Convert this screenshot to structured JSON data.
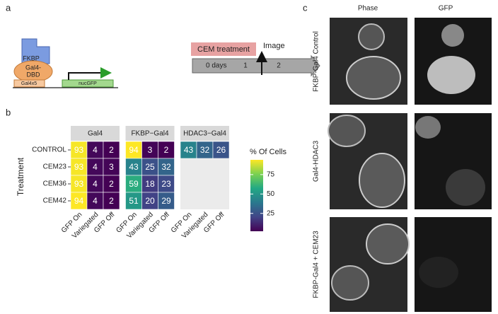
{
  "panel_labels": [
    "a",
    "b",
    "c"
  ],
  "panel_a": {
    "fkbp": "FKBP",
    "dbd": [
      "Gal4-",
      "DBD"
    ],
    "uas": "Gal4x5",
    "reporter": "nucGFP",
    "image": "Image",
    "treatment": "CEM treatment",
    "timeline": [
      "0 days",
      "1",
      "2"
    ]
  },
  "chart_data": {
    "type": "heatmap",
    "y_label": "Treatment",
    "legend_title": "% Of Cells",
    "rows": [
      "CONTROL",
      "CEM23",
      "CEM36",
      "CEM42"
    ],
    "columns": [
      "GFP On",
      "Variegated",
      "GFP Off"
    ],
    "facets": [
      {
        "name": "Gal4",
        "values": [
          [
            93,
            4,
            2
          ],
          [
            93,
            4,
            3
          ],
          [
            93,
            4,
            2
          ],
          [
            94,
            4,
            2
          ]
        ]
      },
      {
        "name": "FKBP−Gal4",
        "values": [
          [
            94,
            3,
            2
          ],
          [
            43,
            25,
            32
          ],
          [
            59,
            18,
            23
          ],
          [
            51,
            20,
            29
          ]
        ]
      },
      {
        "name": "HDAC3−Gal4",
        "values": [
          [
            43,
            32,
            26
          ],
          null,
          null,
          null
        ]
      }
    ],
    "colormap": "viridis",
    "clim": [
      2,
      94
    ],
    "cticks": [
      25,
      50,
      75
    ]
  },
  "panel_c": {
    "columns": [
      "Phase",
      "GFP"
    ],
    "rows": [
      "FKBP-Gal4 Control",
      "Gal4-HDAC3",
      "FKBP-Gal4 + CEM23"
    ]
  }
}
